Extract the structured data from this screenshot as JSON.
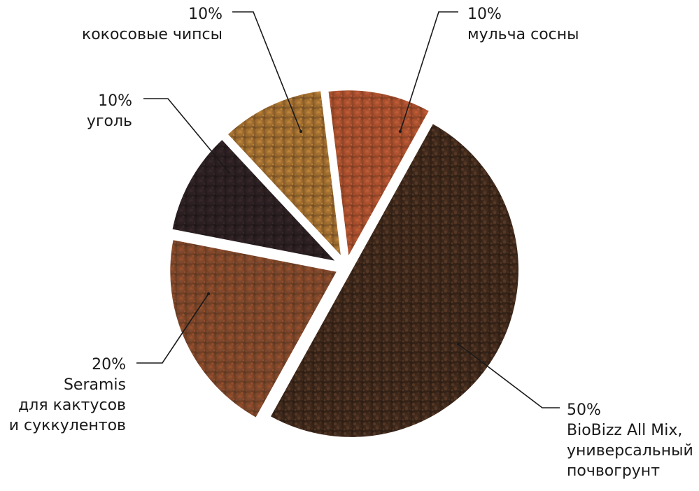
{
  "chart_data": {
    "type": "pie",
    "slices": [
      {
        "value": 50,
        "value_label": "50%",
        "label_lines": [
          "BioBizz All Mix,",
          "универсальный",
          "почвогрунт"
        ],
        "colors": [
          "#2a1b12",
          "#4a3020",
          "#5c3c28"
        ]
      },
      {
        "value": 20,
        "value_label": "20%",
        "label_lines": [
          "Seramis",
          "для кактусов",
          "и суккулентов"
        ],
        "colors": [
          "#5a3620",
          "#a0532e",
          "#7a4a34"
        ]
      },
      {
        "value": 10,
        "value_label": "10%",
        "label_lines": [
          "уголь"
        ],
        "colors": [
          "#1c1416",
          "#3a2a2c",
          "#2a1e22"
        ]
      },
      {
        "value": 10,
        "value_label": "10%",
        "label_lines": [
          "кокосовые чипсы"
        ],
        "colors": [
          "#6e4a22",
          "#c88a3c",
          "#a0702e"
        ]
      },
      {
        "value": 10,
        "value_label": "10%",
        "label_lines": [
          "мульча сосны"
        ],
        "colors": [
          "#7a3a20",
          "#c8603a",
          "#b0502c"
        ]
      }
    ]
  }
}
